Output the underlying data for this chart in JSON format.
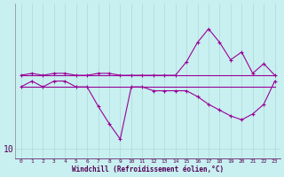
{
  "xlabel": "Windchill (Refroidissement éolien,°C)",
  "bg_color": "#c8f0f0",
  "line_color": "#990099",
  "grid_color": "#b0d8d8",
  "x": [
    0,
    1,
    2,
    3,
    4,
    5,
    6,
    7,
    8,
    9,
    10,
    11,
    12,
    13,
    14,
    15,
    16,
    17,
    18,
    19,
    20,
    21,
    22,
    23
  ],
  "line_horiz1": [
    13.8,
    13.8,
    13.8,
    13.8,
    13.8,
    13.8,
    13.8,
    13.8,
    13.8,
    13.8,
    13.8,
    13.8,
    13.8,
    13.8,
    13.8,
    13.8,
    13.8,
    13.8,
    13.8,
    13.8,
    13.8,
    13.8,
    13.8,
    13.8
  ],
  "line_horiz2": [
    13.2,
    13.2,
    13.2,
    13.2,
    13.2,
    13.2,
    13.2,
    13.2,
    13.2,
    13.2,
    13.2,
    13.2,
    13.2,
    13.2,
    13.2,
    13.2,
    13.2,
    13.2,
    13.2,
    13.2,
    13.2,
    13.2,
    13.2,
    13.2
  ],
  "line_top": [
    13.8,
    13.9,
    13.8,
    13.9,
    13.9,
    13.8,
    13.8,
    13.9,
    13.9,
    13.8,
    13.8,
    13.8,
    13.8,
    13.8,
    13.8,
    14.5,
    15.5,
    16.2,
    15.5,
    14.6,
    15.0,
    13.9,
    14.4,
    13.8
  ],
  "line_dip": [
    13.2,
    13.5,
    13.2,
    13.5,
    13.5,
    13.2,
    13.2,
    12.2,
    11.3,
    10.5,
    13.2,
    13.2,
    13.0,
    13.0,
    13.0,
    13.0,
    12.7,
    12.3,
    12.0,
    11.7,
    11.5,
    11.8,
    12.3,
    13.5
  ],
  "ylim": [
    9.5,
    17.5
  ],
  "xlim": [
    -0.5,
    23.5
  ]
}
